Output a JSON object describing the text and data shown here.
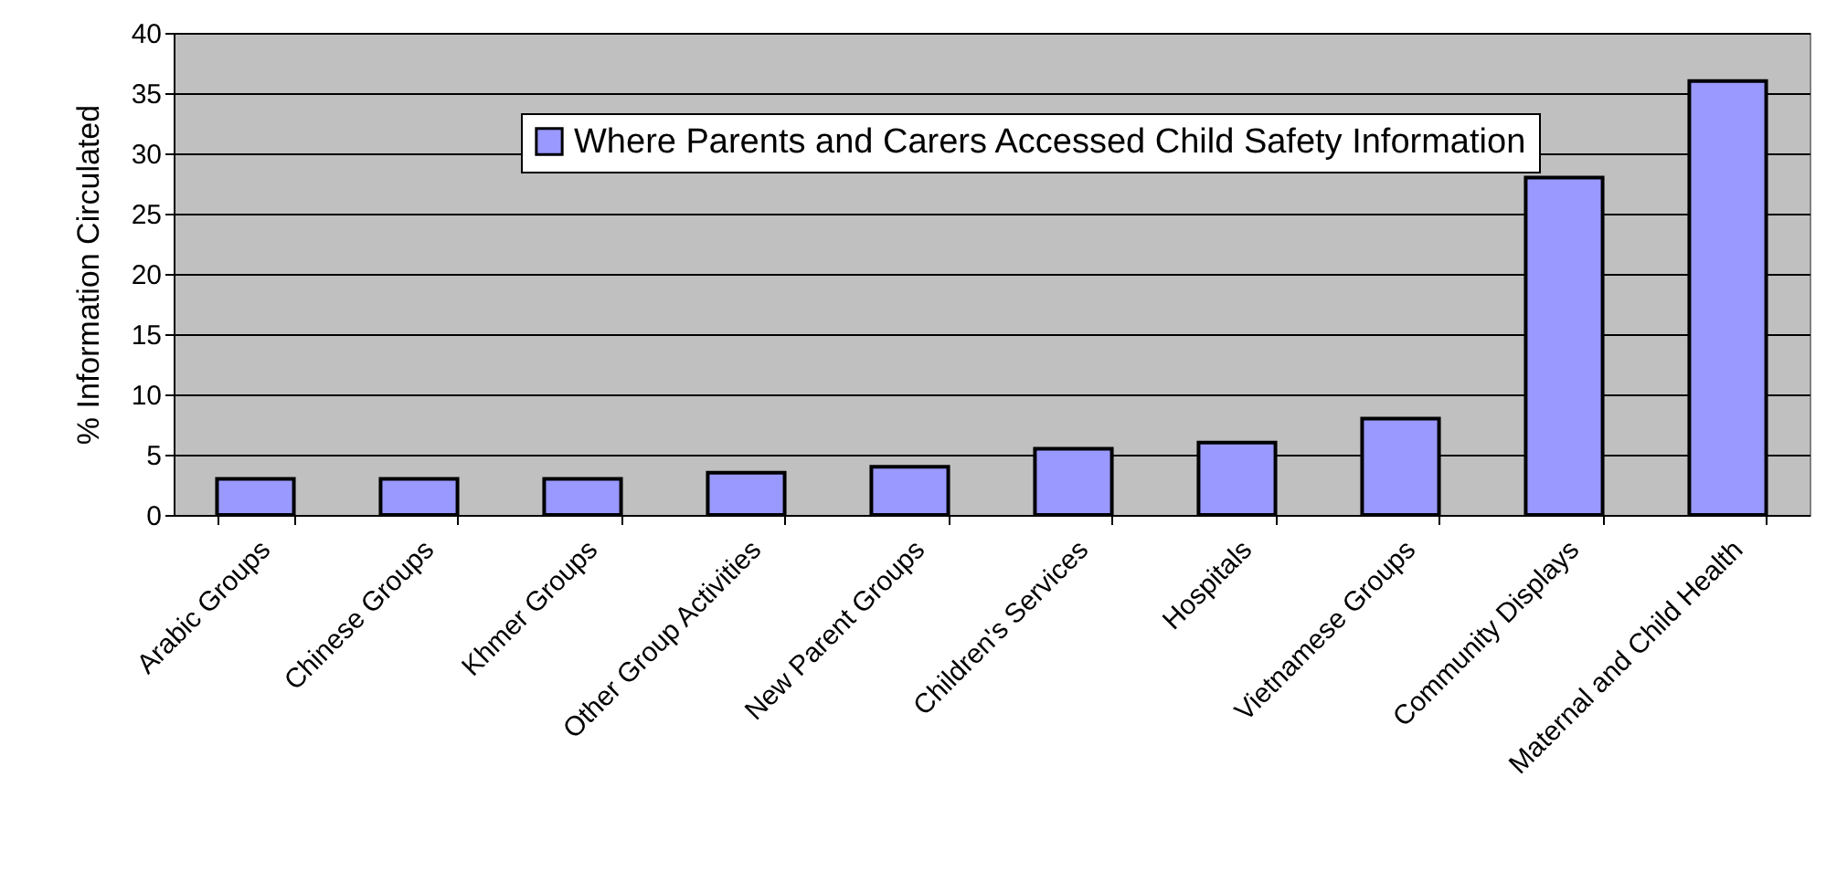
{
  "chart_data": {
    "type": "bar",
    "ylabel": "% Information Circulated",
    "categories": [
      "Arabic Groups",
      "Chinese Groups",
      "Khmer Groups",
      "Other Group Activities",
      "New Parent Groups",
      "Children's Services",
      "Hospitals",
      "Vietnamese Groups",
      "Community Displays",
      "Maternal and Child Health"
    ],
    "series": [
      {
        "name": "Where Parents and Carers Accessed Child Safety Information",
        "color": "#9999ff",
        "values": [
          3,
          3,
          3,
          3.5,
          4,
          5.5,
          6,
          8,
          28,
          36
        ]
      }
    ],
    "ylim": [
      0,
      40
    ],
    "yticks": [
      0,
      5,
      10,
      15,
      20,
      25,
      30,
      35,
      40
    ],
    "grid": "y",
    "legend": "top"
  }
}
